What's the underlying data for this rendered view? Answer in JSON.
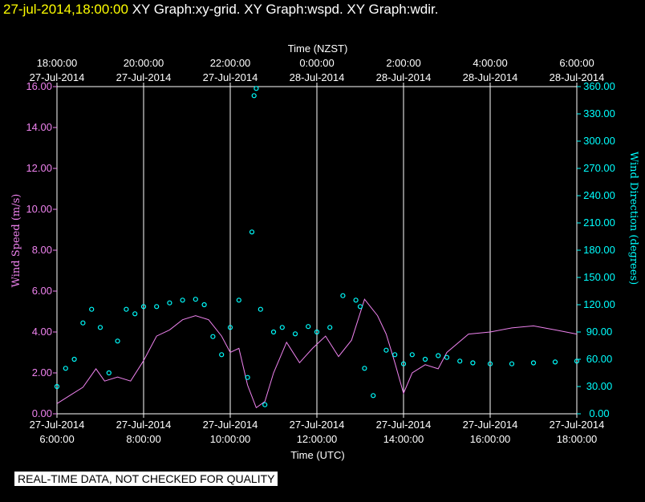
{
  "header": {
    "timestamp": "27-jul-2014,18:00:00",
    "graphs": "XY Graph:xy-grid.  XY Graph:wspd.  XY Graph:wdir."
  },
  "note": "REAL-TIME DATA, NOT CHECKED FOR QUALITY",
  "colors": {
    "speed": "#ee82ee",
    "direction": "#00ffff",
    "grid": "#ffffff",
    "background": "#000000"
  },
  "chart_data": {
    "type": "line",
    "top_axis_title": "Time (NZST)",
    "bottom_axis_title": "Time (UTC)",
    "left_axis_title": "Wind Speed (m/s)",
    "right_axis_title": "Wind Direction (degrees)",
    "x_hours_utc_range": [
      6,
      18
    ],
    "bottom_ticks": [
      {
        "date": "27-Jul-2014",
        "time": "6:00:00"
      },
      {
        "date": "27-Jul-2014",
        "time": "8:00:00"
      },
      {
        "date": "27-Jul-2014",
        "time": "10:00:00"
      },
      {
        "date": "27-Jul-2014",
        "time": "12:00:00"
      },
      {
        "date": "27-Jul-2014",
        "time": "14:00:00"
      },
      {
        "date": "27-Jul-2014",
        "time": "16:00:00"
      },
      {
        "date": "27-Jul-2014",
        "time": "18:00:00"
      }
    ],
    "top_ticks": [
      {
        "time": "18:00:00",
        "date": "27-Jul-2014"
      },
      {
        "time": "20:00:00",
        "date": "27-Jul-2014"
      },
      {
        "time": "22:00:00",
        "date": "27-Jul-2014"
      },
      {
        "time": "0:00:00",
        "date": "28-Jul-2014"
      },
      {
        "time": "2:00:00",
        "date": "28-Jul-2014"
      },
      {
        "time": "4:00:00",
        "date": "28-Jul-2014"
      },
      {
        "time": "6:00:00",
        "date": "28-Jul-2014"
      }
    ],
    "left_ticks": [
      "0.00",
      "2.00",
      "4.00",
      "6.00",
      "8.00",
      "10.00",
      "12.00",
      "14.00",
      "16.00"
    ],
    "right_ticks": [
      "0.00",
      "30.00",
      "60.00",
      "90.00",
      "120.00",
      "150.00",
      "180.00",
      "210.00",
      "240.00",
      "270.00",
      "300.00",
      "330.00",
      "360.00"
    ],
    "speed_ylim": [
      0,
      16
    ],
    "direction_ylim": [
      0,
      360
    ],
    "grid": "vertical",
    "series": [
      {
        "name": "Wind Speed (m/s)",
        "axis": "left",
        "style": "line",
        "x_hours_utc": [
          6.0,
          6.3,
          6.6,
          6.9,
          7.1,
          7.4,
          7.7,
          8.0,
          8.3,
          8.6,
          8.9,
          9.2,
          9.5,
          9.8,
          10.0,
          10.2,
          10.4,
          10.6,
          10.8,
          11.0,
          11.3,
          11.6,
          11.9,
          12.2,
          12.5,
          12.8,
          13.1,
          13.4,
          13.6,
          13.8,
          14.0,
          14.2,
          14.5,
          14.8,
          15.0,
          15.5,
          16.0,
          16.5,
          17.0,
          17.5,
          18.0
        ],
        "values": [
          0.5,
          0.9,
          1.3,
          2.2,
          1.6,
          1.8,
          1.6,
          2.6,
          3.8,
          4.1,
          4.6,
          4.8,
          4.6,
          3.8,
          3.0,
          3.2,
          1.4,
          0.3,
          0.6,
          2.0,
          3.5,
          2.5,
          3.2,
          3.8,
          2.8,
          3.6,
          5.6,
          4.8,
          3.9,
          2.5,
          1.0,
          2.0,
          2.4,
          2.2,
          3.0,
          3.9,
          4.0,
          4.2,
          4.3,
          4.1,
          3.9
        ]
      },
      {
        "name": "Wind Direction (degrees)",
        "axis": "right",
        "style": "markers",
        "x_hours_utc": [
          6.0,
          6.2,
          6.4,
          6.6,
          6.8,
          7.0,
          7.2,
          7.4,
          7.6,
          7.8,
          8.0,
          8.3,
          8.6,
          8.9,
          9.2,
          9.4,
          9.6,
          9.8,
          10.0,
          10.2,
          10.4,
          10.5,
          10.55,
          10.6,
          10.7,
          10.8,
          11.0,
          11.2,
          11.5,
          11.8,
          12.0,
          12.3,
          12.6,
          12.9,
          13.0,
          13.1,
          13.3,
          13.6,
          13.8,
          14.0,
          14.2,
          14.5,
          14.8,
          15.0,
          15.3,
          15.6,
          16.0,
          16.5,
          17.0,
          17.5,
          18.0
        ],
        "values": [
          30,
          50,
          60,
          100,
          115,
          95,
          45,
          80,
          115,
          110,
          118,
          118,
          122,
          125,
          126,
          120,
          85,
          65,
          95,
          125,
          40,
          200,
          350,
          358,
          115,
          10,
          90,
          95,
          88,
          96,
          90,
          95,
          130,
          125,
          118,
          50,
          20,
          70,
          65,
          55,
          65,
          60,
          64,
          62,
          58,
          56,
          55,
          55,
          56,
          57,
          58
        ]
      }
    ]
  }
}
